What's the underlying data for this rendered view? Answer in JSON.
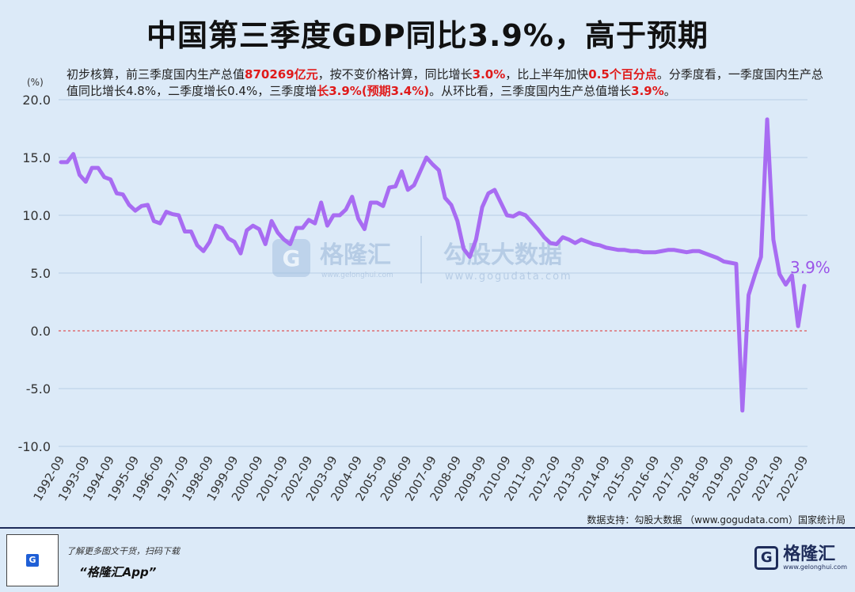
{
  "header": {
    "title": "中国第三季度GDP同比3.9%，高于预期",
    "summary_parts": [
      {
        "text": "初步核算，前三季度国内生产总值",
        "hl": false
      },
      {
        "text": "870269亿元",
        "hl": true
      },
      {
        "text": "，按不变价格计算，同比增长",
        "hl": false
      },
      {
        "text": "3.0%",
        "hl": true
      },
      {
        "text": "，比上半年加快",
        "hl": false
      },
      {
        "text": "0.5个百分点",
        "hl": true
      },
      {
        "text": "。分季度看，一季度国内生产总值同比增长4.8%，二季度增长0.4%，三季度增",
        "hl": false
      },
      {
        "text": "长3.9%(预期3.4%)",
        "hl": true
      },
      {
        "text": "。从环比看，三季度国内生产总值增长",
        "hl": false
      },
      {
        "text": "3.9%",
        "hl": true
      },
      {
        "text": "。",
        "hl": false
      }
    ]
  },
  "watermark": {
    "brand1": "格隆汇",
    "brand1_url": "www.gelonghui.com",
    "brand2": "勾股大数据",
    "brand2_url": "www.gogudata.com"
  },
  "colors": {
    "line": "#a86cf2",
    "zero_line": "#e03030",
    "grid": "#b9cfe6",
    "axis_text": "#333333",
    "highlight": "#e01a1a"
  },
  "chart_data": {
    "type": "line",
    "title": "中国第三季度GDP同比3.9%，高于预期",
    "ylabel": "(%)",
    "ylim": [
      -10,
      20
    ],
    "yticks": [
      -10,
      -5,
      0,
      5,
      10,
      15,
      20
    ],
    "ytick_labels": [
      "-10.0",
      "-5.0",
      "0.0",
      "5.0",
      "10.0",
      "15.0",
      "20.0"
    ],
    "xtick_labels": [
      "1992-09",
      "1993-09",
      "1994-09",
      "1995-09",
      "1996-09",
      "1997-09",
      "1998-09",
      "1999-09",
      "2000-09",
      "2001-09",
      "2002-09",
      "2003-09",
      "2004-09",
      "2005-09",
      "2006-09",
      "2007-09",
      "2008-09",
      "2009-09",
      "2010-09",
      "2011-09",
      "2012-09",
      "2013-09",
      "2014-09",
      "2015-09",
      "2016-09",
      "2017-09",
      "2018-09",
      "2019-09",
      "2020-09",
      "2021-09",
      "2022-09"
    ],
    "end_label": "3.9%",
    "series": [
      {
        "name": "GDP同比",
        "x_start": "1992-09",
        "frequency": "quarterly",
        "values": [
          14.6,
          14.6,
          15.3,
          13.5,
          12.9,
          14.1,
          14.1,
          13.3,
          13.1,
          11.9,
          11.8,
          10.9,
          10.4,
          10.8,
          10.9,
          9.5,
          9.3,
          10.3,
          10.1,
          10.0,
          8.6,
          8.6,
          7.4,
          6.9,
          7.7,
          9.1,
          8.9,
          8.0,
          7.7,
          6.7,
          8.7,
          9.1,
          8.8,
          7.5,
          9.5,
          8.5,
          7.9,
          7.5,
          8.9,
          8.9,
          9.6,
          9.3,
          11.1,
          9.1,
          10.0,
          10.0,
          10.5,
          11.6,
          9.7,
          8.8,
          11.1,
          11.1,
          10.8,
          12.4,
          12.5,
          13.8,
          12.2,
          12.6,
          13.8,
          15.0,
          14.4,
          13.9,
          11.5,
          10.9,
          9.5,
          7.1,
          6.4,
          7.9,
          10.7,
          11.9,
          12.2,
          11.1,
          10.0,
          9.9,
          10.2,
          10.0,
          9.4,
          8.8,
          8.1,
          7.6,
          7.5,
          8.1,
          7.9,
          7.6,
          7.9,
          7.7,
          7.5,
          7.4,
          7.2,
          7.1,
          7.0,
          7.0,
          6.9,
          6.9,
          6.8,
          6.8,
          6.8,
          6.9,
          7.0,
          7.0,
          6.9,
          6.8,
          6.9,
          6.9,
          6.7,
          6.5,
          6.3,
          6.0,
          5.9,
          5.8,
          -6.9,
          3.1,
          4.8,
          6.4,
          18.3,
          7.9,
          4.9,
          4.0,
          4.8,
          0.4,
          3.9
        ]
      }
    ]
  },
  "footer": {
    "source": "数据支持：勾股大数据 （www.gogudata.com）国家统计局",
    "promo_line": "了解更多图文干货，扫码下载",
    "app_name": "“格隆汇App”",
    "brand_name": "格隆汇",
    "brand_url": "www.gelonghui.com"
  }
}
